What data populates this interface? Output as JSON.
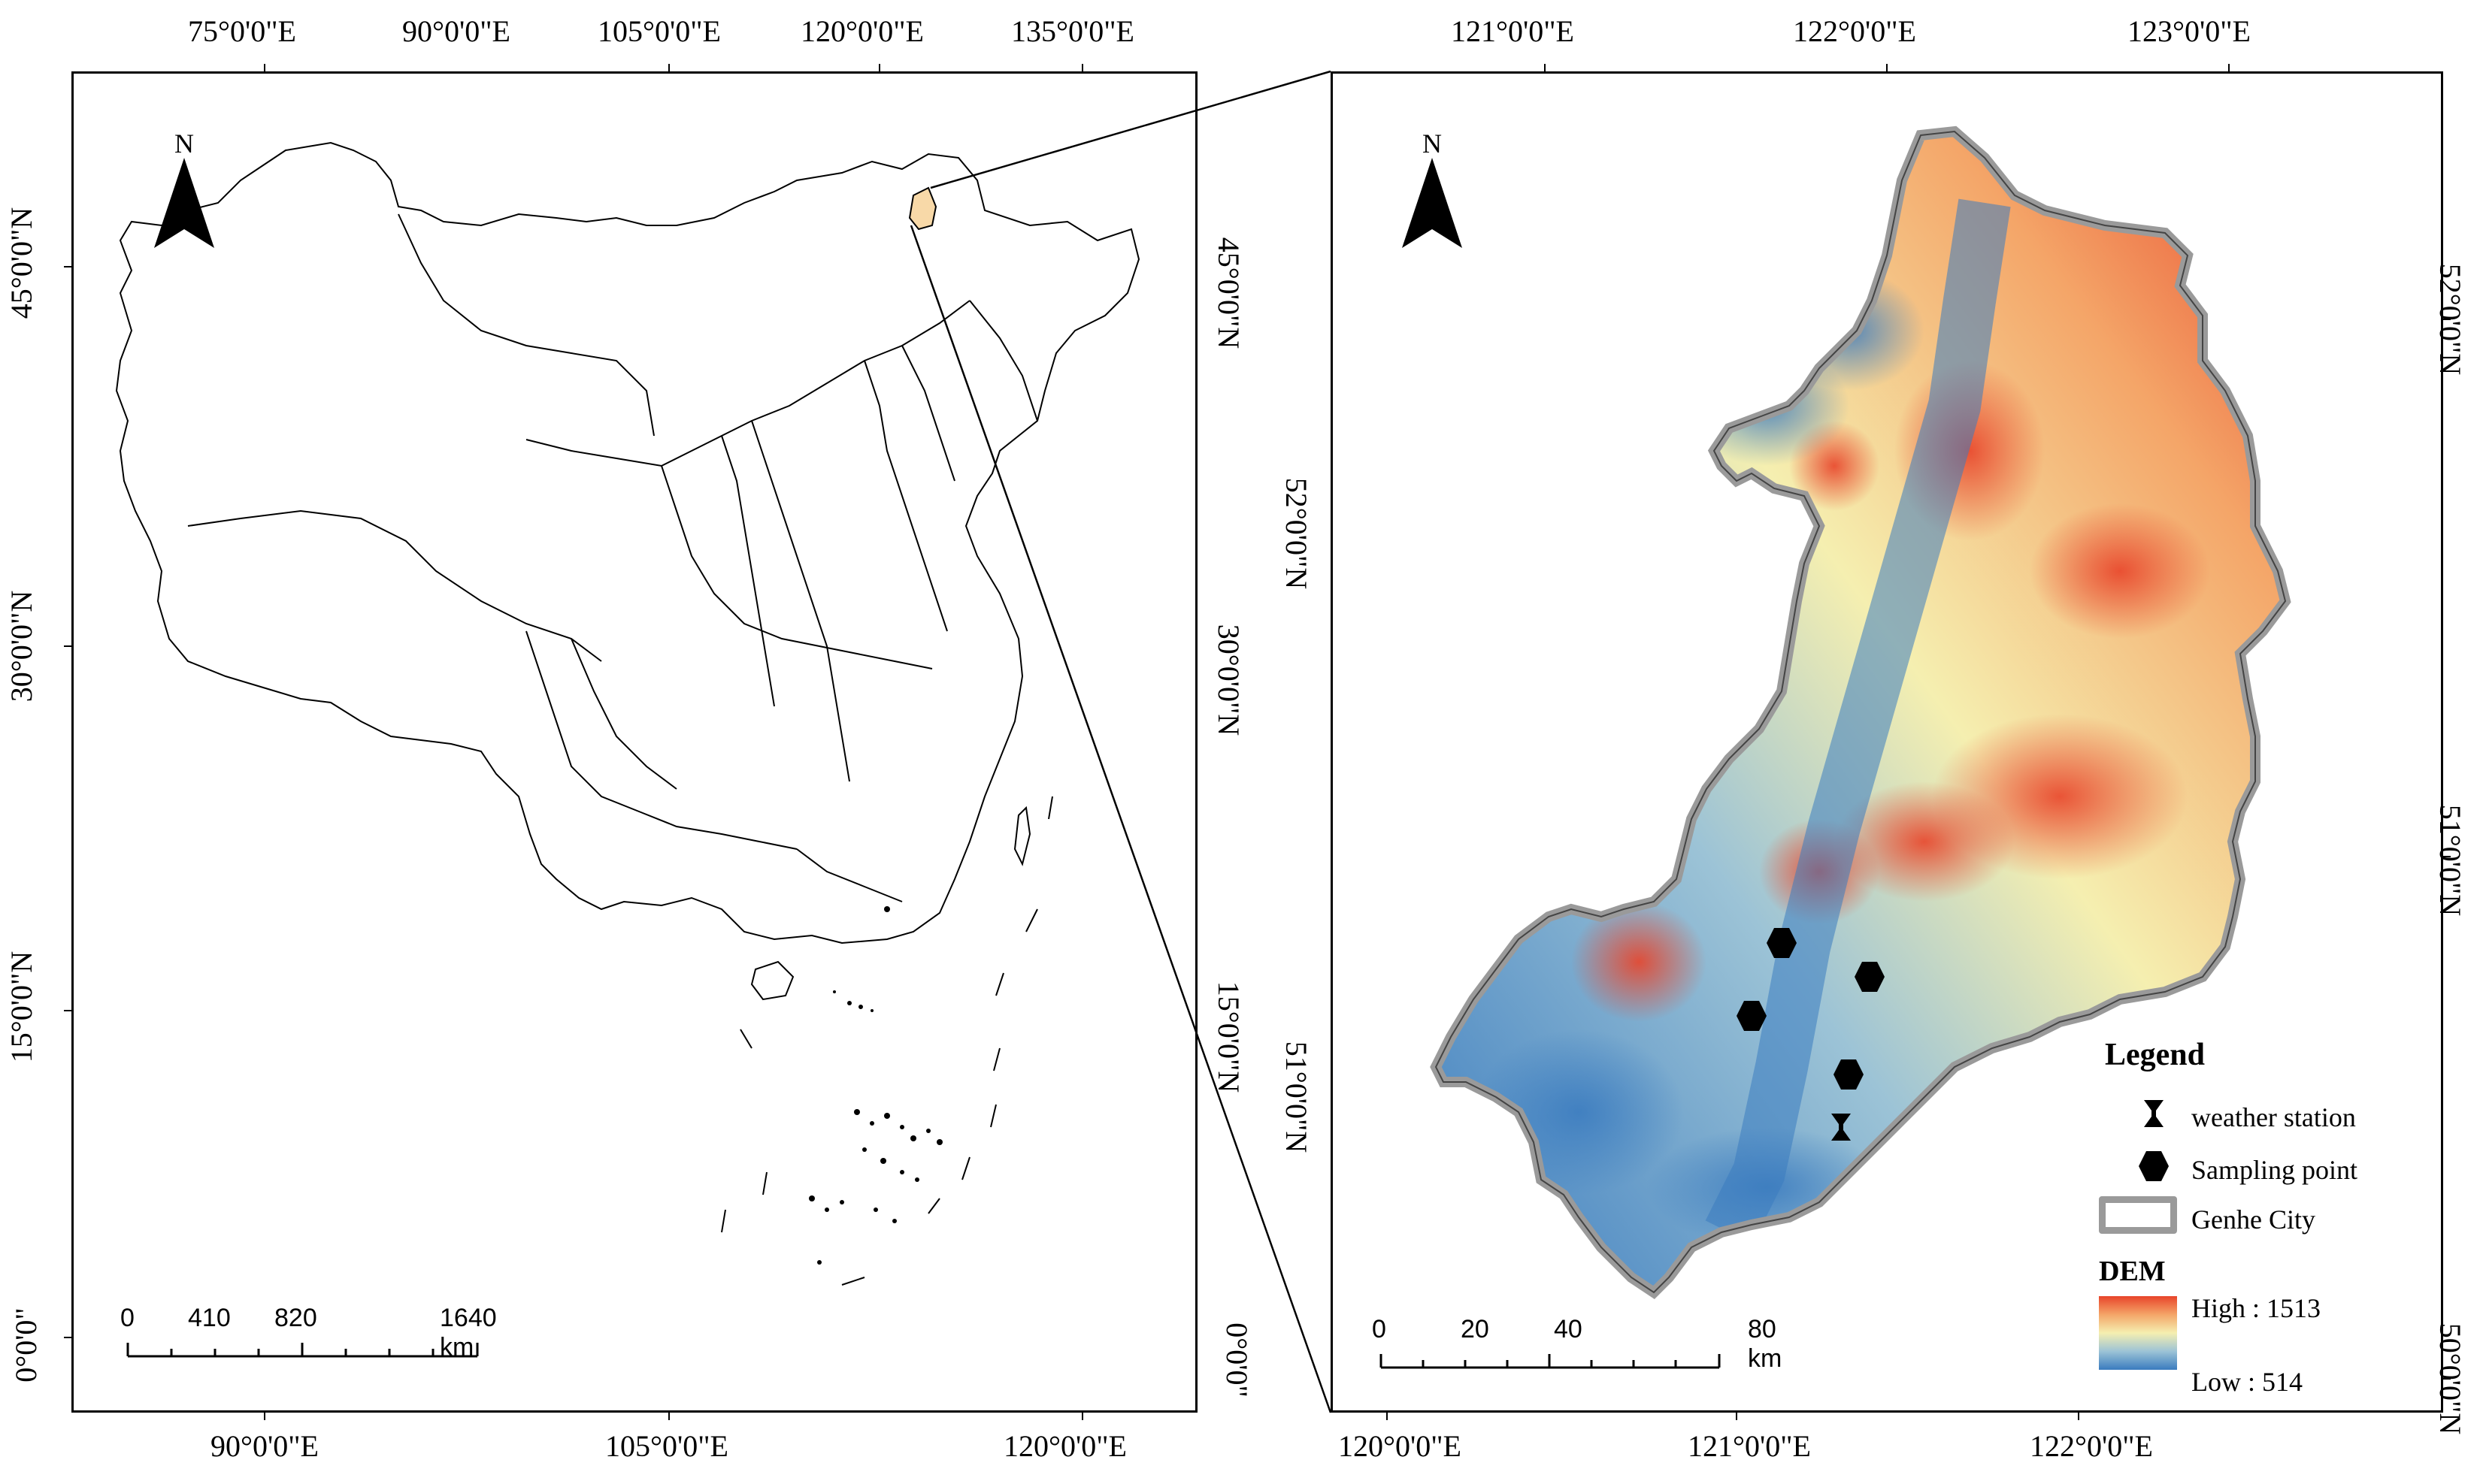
{
  "left_map": {
    "top_ticks": [
      "75°0'0\"E",
      "90°0'0\"E",
      "105°0'0\"E",
      "120°0'0\"E",
      "135°0'0\"E"
    ],
    "bottom_ticks": [
      "90°0'0\"E",
      "105°0'0\"E",
      "120°0'0\"E"
    ],
    "left_ticks": [
      "45°0'0\"N",
      "30°0'0\"N",
      "15°0'0\"N",
      "0°0'0\""
    ],
    "right_ticks": [
      "45°0'0\"N",
      "52°0'0\"N",
      "30°0'0\"N",
      "15°0'0\"N",
      "51°0'0\"N",
      "0°0'0\""
    ],
    "north": "N",
    "scale": {
      "labels": [
        "0",
        "410",
        "820",
        "1640 km"
      ]
    }
  },
  "right_map": {
    "top_ticks": [
      "121°0'0\"E",
      "122°0'0\"E",
      "123°0'0\"E"
    ],
    "bottom_ticks": [
      "120°0'0\"E",
      "121°0'0\"E",
      "122°0'0\"E"
    ],
    "right_ticks": [
      "52°0'0\"N",
      "51°0'0\"N",
      "50°0'0\"N"
    ],
    "north": "N",
    "scale": {
      "labels": [
        "0",
        "20",
        "40",
        "80 km"
      ]
    }
  },
  "legend": {
    "title": "Legend",
    "items": [
      "weather station",
      "Sampling point",
      "Genhe City"
    ],
    "dem_title": "DEM",
    "high": "High : 1513",
    "low": "Low : 514",
    "colors": {
      "high": "#e8442a",
      "mid": "#f5efb0",
      "low": "#3a7bbf",
      "study_area": "#f8d9a8"
    }
  }
}
